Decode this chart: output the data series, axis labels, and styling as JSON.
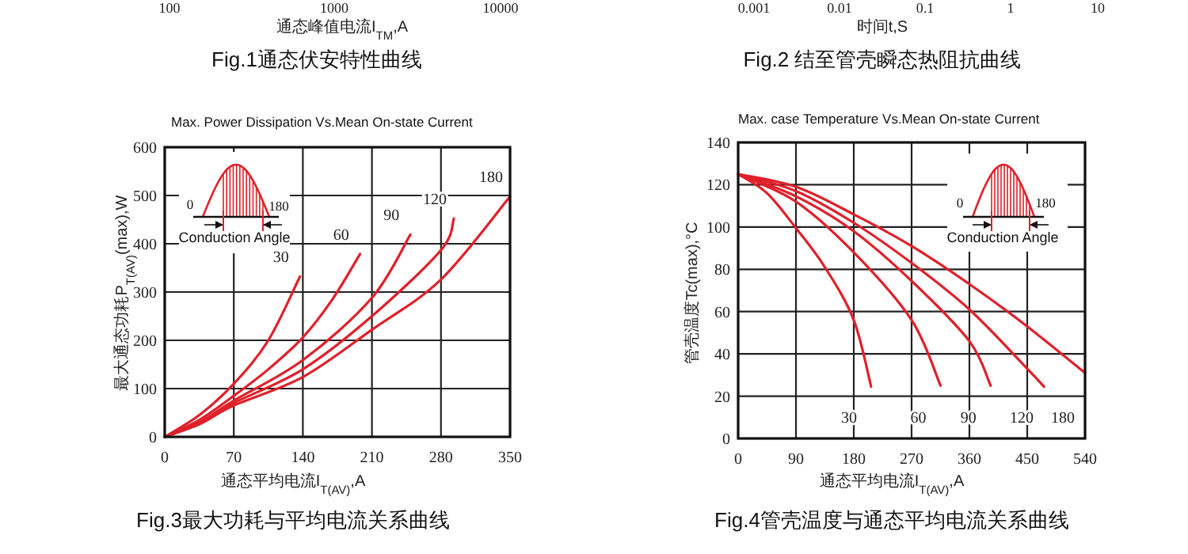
{
  "chart_data": [
    {
      "type": "other",
      "xlabel": "通态峰值电流I$_{TM}$,A",
      "annotations": [
        "Fig.1通态伏安特性曲线",
        "100",
        "1000",
        "10000"
      ]
    },
    {
      "type": "other",
      "xlabel": "时间t,S",
      "annotations": [
        "Fig.2 结至管壳瞬态热阻抗曲线",
        "0.001",
        "0.01",
        "0.1",
        "1",
        "10"
      ]
    },
    {
      "type": "line",
      "title": "Max. Power Dissipation Vs.Mean On-state Current",
      "xlabel": "通态平均电流I$_{T(AV)}$,A",
      "ylabel": "最大通态功耗P$_{T(AV)}$(max),W",
      "xlim": [
        0,
        350
      ],
      "ylim": [
        0,
        600
      ],
      "xticks": [
        0,
        70,
        140,
        210,
        280,
        350
      ],
      "yticks": [
        0,
        100,
        200,
        300,
        400,
        500,
        600
      ],
      "grid": true,
      "series": [
        {
          "name": "30",
          "color": "#e0202a",
          "x": [
            0,
            35,
            70,
            105,
            137
          ],
          "values": [
            0,
            45,
            110,
            200,
            332
          ]
        },
        {
          "name": "60",
          "color": "#e0202a",
          "x": [
            0,
            35,
            70,
            105,
            140,
            170,
            198
          ],
          "values": [
            0,
            35,
            85,
            140,
            206,
            285,
            379
          ]
        },
        {
          "name": "90",
          "color": "#e0202a",
          "x": [
            0,
            35,
            70,
            140,
            210,
            249
          ],
          "values": [
            0,
            30,
            75,
            159,
            288,
            419
          ]
        },
        {
          "name": "120",
          "color": "#e0202a",
          "x": [
            0,
            35,
            70,
            140,
            210,
            280,
            293
          ],
          "values": [
            0,
            28,
            70,
            140,
            250,
            387,
            452
          ]
        },
        {
          "name": "180",
          "color": "#e0202a",
          "x": [
            0,
            35,
            70,
            140,
            210,
            280,
            350
          ],
          "values": [
            0,
            26,
            65,
            124,
            222,
            326,
            498
          ]
        }
      ],
      "annotations": [
        "Fig.3最大功耗与平均电流关系曲线",
        "0",
        "180",
        "Conduction Angle"
      ]
    },
    {
      "type": "line",
      "title": "Max. case Temperature Vs.Mean On-state Current",
      "xlabel": "通态平均电流I$_{T(AV)}$,A",
      "ylabel": "管壳温度Tc(max),°C",
      "xlim": [
        0,
        540
      ],
      "ylim": [
        0,
        140
      ],
      "xticks": [
        0,
        90,
        180,
        270,
        360,
        450,
        540
      ],
      "yticks": [
        0,
        20,
        40,
        60,
        80,
        100,
        120,
        140
      ],
      "grid": true,
      "series": [
        {
          "name": "30",
          "color": "#e0202a",
          "x": [
            0,
            45,
            90,
            135,
            180,
            207
          ],
          "values": [
            125,
            116,
            99.5,
            81,
            56,
            24.5
          ]
        },
        {
          "name": "60",
          "color": "#e0202a",
          "x": [
            0,
            90,
            180,
            270,
            315
          ],
          "values": [
            125,
            112,
            88,
            56,
            25
          ]
        },
        {
          "name": "90",
          "color": "#e0202a",
          "x": [
            0,
            90,
            180,
            270,
            360,
            393
          ],
          "values": [
            125,
            114.5,
            98,
            74.5,
            46,
            25
          ]
        },
        {
          "name": "120",
          "color": "#e0202a",
          "x": [
            0,
            90,
            180,
            270,
            360,
            450,
            476
          ],
          "values": [
            125,
            117,
            102,
            83,
            61,
            33,
            24.5
          ]
        },
        {
          "name": "180",
          "color": "#e0202a",
          "x": [
            0,
            90,
            180,
            270,
            360,
            450,
            540
          ],
          "values": [
            125,
            119,
            106,
            91,
            73,
            53,
            31
          ]
        }
      ],
      "annotations": [
        "Fig.4管壳温度与通态平均电流关系曲线",
        "0",
        "180",
        "Conduction Angle"
      ]
    }
  ]
}
